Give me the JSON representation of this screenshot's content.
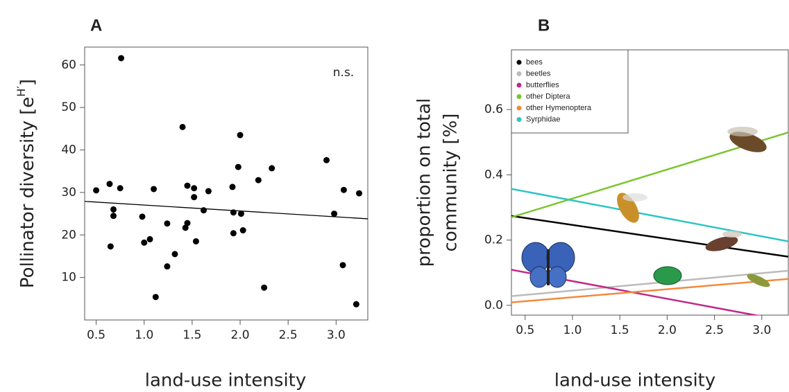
{
  "chart_data": [
    {
      "type": "scatter",
      "title": "A",
      "xlabel": "land-use intensity",
      "ylabel": {
        "text": "Pollinator diversity [e",
        "superscript": "H′",
        "after": "]"
      },
      "annotation": "n.s.",
      "color": "#000000",
      "x": [
        0.5,
        0.64,
        0.75,
        0.76,
        0.68,
        0.68,
        0.65,
        0.98,
        1.0,
        1.06,
        1.1,
        1.12,
        1.24,
        1.24,
        1.32,
        1.4,
        1.43,
        1.45,
        1.45,
        1.52,
        1.52,
        1.54,
        1.62,
        1.67,
        1.92,
        1.93,
        1.93,
        1.98,
        2.0,
        2.01,
        2.03,
        2.19,
        2.25,
        2.33,
        2.9,
        2.98,
        3.08,
        3.07,
        3.21,
        3.24
      ],
      "values": [
        30.5,
        32,
        31,
        61.6,
        26,
        24.5,
        17.3,
        24.3,
        18.2,
        19,
        30.8,
        5.4,
        22.7,
        12.6,
        15.5,
        45.4,
        21.7,
        22.8,
        31.6,
        31,
        28.9,
        18.5,
        25.8,
        30.3,
        31.3,
        25.3,
        20.4,
        36,
        43.5,
        25,
        21.1,
        32.9,
        7.6,
        35.7,
        37.6,
        25,
        30.6,
        12.9,
        3.7,
        29.8
      ],
      "trend_line": {
        "x": [
          0.38,
          3.33
        ],
        "y": [
          27.9,
          23.8
        ]
      },
      "xlim": [
        0.38,
        3.33
      ],
      "xticks": [
        0.5,
        {
          "value": 1,
          "label": "1.0"
        },
        1.5,
        {
          "value": 2,
          "label": "2.0"
        },
        2.5,
        {
          "value": 3,
          "label": "3.0"
        }
      ],
      "ylim": [
        0,
        64.2
      ],
      "yticks": [
        10,
        20,
        30,
        40,
        50,
        60
      ]
    },
    {
      "type": "line",
      "title": "B",
      "xlabel": "land-use intensity",
      "ylabel": [
        "proportion on total",
        "community [%]"
      ],
      "x": [
        0.355,
        3.28
      ],
      "series": [
        {
          "name": "bees",
          "color": "#000000",
          "values": [
            0.274,
            0.149
          ]
        },
        {
          "name": "beetles",
          "color": "#bbbbbb",
          "values": [
            0.028,
            0.106
          ]
        },
        {
          "name": "butterflies",
          "color": "#c0288a",
          "values": [
            0.109,
            -0.049
          ]
        },
        {
          "name": "other Diptera",
          "color": "#7ac52e",
          "values": [
            0.27,
            0.53
          ]
        },
        {
          "name": "other Hymenoptera",
          "color": "#f08a3c",
          "values": [
            0.009,
            0.081
          ]
        },
        {
          "name": "Syrphidae",
          "color": "#2ec4c4",
          "values": [
            0.357,
            0.196
          ]
        }
      ],
      "legend": "upper left",
      "xlim": [
        0.355,
        3.28
      ],
      "xticks": [
        0.5,
        {
          "value": 1,
          "label": "1.0"
        },
        1.5,
        {
          "value": 2,
          "label": "2.0"
        },
        2.5,
        {
          "value": 3,
          "label": "3.0"
        }
      ],
      "ylim": [
        -0.03,
        0.783
      ],
      "yticks": [
        {
          "value": 0,
          "label": "0.0"
        },
        0.2,
        0.4,
        0.6
      ]
    }
  ]
}
